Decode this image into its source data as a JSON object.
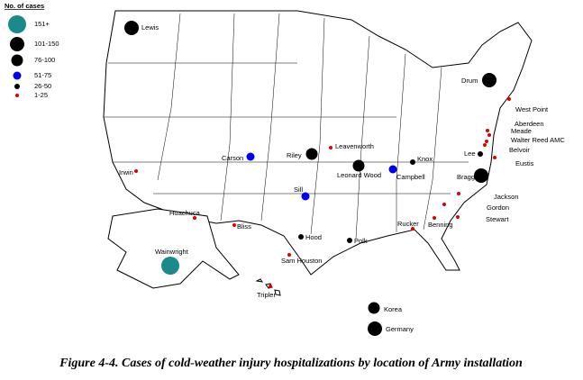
{
  "legend": {
    "title": "No. of cases",
    "items": [
      {
        "label": "151+",
        "color": "#1a8a8a"
      },
      {
        "label": "101-150",
        "color": "#000000"
      },
      {
        "label": "76-100",
        "color": "#000000"
      },
      {
        "label": "51-75",
        "color": "#0000ee"
      },
      {
        "label": "26-50",
        "color": "#000000"
      },
      {
        "label": "1-25",
        "color": "#e00000"
      }
    ]
  },
  "installations": [
    {
      "name": "Lewis",
      "category": "101-150"
    },
    {
      "name": "Drum",
      "category": "101-150"
    },
    {
      "name": "West Point",
      "category": "1-25"
    },
    {
      "name": "Aberdeen",
      "category": "1-25"
    },
    {
      "name": "Meade",
      "category": "1-25"
    },
    {
      "name": "Walter Reed AMC",
      "category": "1-25"
    },
    {
      "name": "Belvoir",
      "category": "1-25"
    },
    {
      "name": "Eustis",
      "category": "1-25"
    },
    {
      "name": "Lee",
      "category": "26-50"
    },
    {
      "name": "Bragg",
      "category": "101-150"
    },
    {
      "name": "Jackson",
      "category": "1-25"
    },
    {
      "name": "Gordon",
      "category": "1-25"
    },
    {
      "name": "Stewart",
      "category": "1-25"
    },
    {
      "name": "Benning",
      "category": "1-25"
    },
    {
      "name": "Rucker",
      "category": "1-25"
    },
    {
      "name": "Knox",
      "category": "26-50"
    },
    {
      "name": "Campbell",
      "category": "51-75"
    },
    {
      "name": "Leonard Wood",
      "category": "76-100"
    },
    {
      "name": "Leavenworth",
      "category": "1-25"
    },
    {
      "name": "Riley",
      "category": "76-100"
    },
    {
      "name": "Carson",
      "category": "51-75"
    },
    {
      "name": "Sill",
      "category": "51-75"
    },
    {
      "name": "Irwin",
      "category": "1-25"
    },
    {
      "name": "Huachuca",
      "category": "1-25"
    },
    {
      "name": "Bliss",
      "category": "1-25"
    },
    {
      "name": "Hood",
      "category": "26-50"
    },
    {
      "name": "Polk",
      "category": "26-50"
    },
    {
      "name": "Sam Houston",
      "category": "1-25"
    },
    {
      "name": "Wainwright",
      "category": "151+"
    },
    {
      "name": "Tripler",
      "category": "1-25"
    },
    {
      "name": "Korea",
      "category": "76-100"
    },
    {
      "name": "Germany",
      "category": "101-150"
    }
  ],
  "caption": "Figure 4-4.  Cases of cold-weather injury hospitalizations by location of Army installation"
}
